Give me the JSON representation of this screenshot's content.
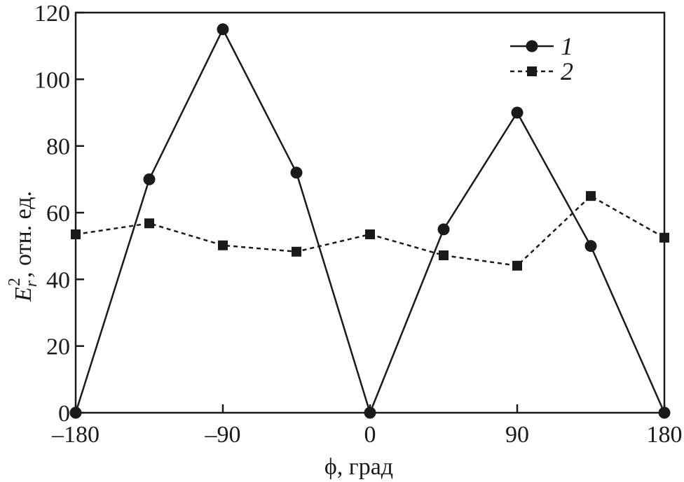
{
  "chart_data": {
    "type": "line",
    "title": "",
    "xlabel": "ϕ, град",
    "ylabel": {
      "main": "E",
      "subscript": "r",
      "superscript": "2",
      "rest": ", отн. ед."
    },
    "xlim": [
      -180,
      180
    ],
    "ylim": [
      0,
      120
    ],
    "xticks": [
      -180,
      -90,
      0,
      90,
      180
    ],
    "xtick_labels": [
      "–180",
      "–90",
      "0",
      "90",
      "180"
    ],
    "yticks": [
      0,
      20,
      40,
      60,
      80,
      100,
      120
    ],
    "ytick_labels": [
      "0",
      "20",
      "40",
      "60",
      "80",
      "100",
      "120"
    ],
    "grid": false,
    "legend_position": "top-right",
    "series": [
      {
        "name": "1",
        "line_style": "solid",
        "marker": "circle",
        "color": "#1a1a1a",
        "x": [
          -180,
          -135,
          -90,
          -45,
          0,
          45,
          90,
          135,
          180
        ],
        "y": [
          0,
          70,
          115,
          72,
          0,
          55,
          90,
          50,
          0
        ]
      },
      {
        "name": "2",
        "line_style": "dashed",
        "marker": "square",
        "color": "#1a1a1a",
        "x": [
          -180,
          -135,
          -90,
          -45,
          0,
          45,
          90,
          135,
          180
        ],
        "y": [
          53.5,
          56.8,
          50.2,
          48.3,
          53.5,
          47.2,
          44.1,
          65,
          52.5
        ]
      }
    ]
  }
}
